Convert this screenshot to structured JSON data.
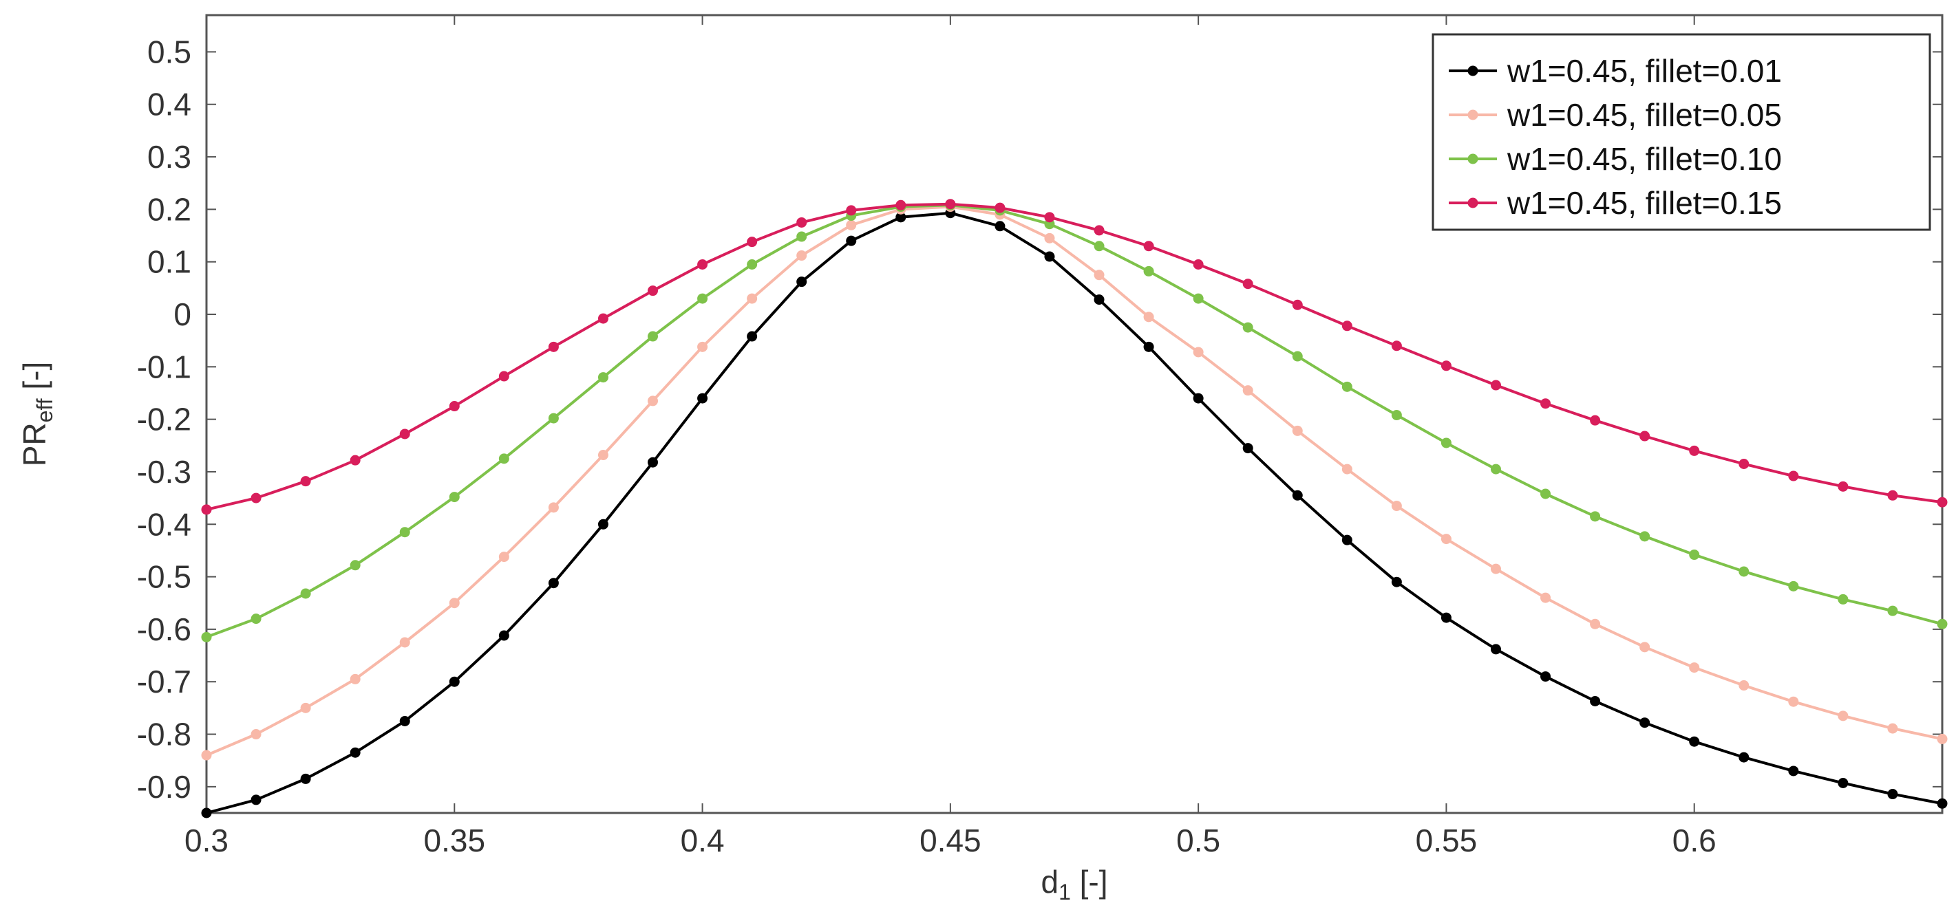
{
  "chart_data": {
    "type": "line",
    "title": "",
    "xlabel": {
      "main": "d",
      "sub": "1",
      "suffix": " [-]"
    },
    "ylabel": {
      "main": "PR",
      "sub": "eff",
      "suffix": " [-]"
    },
    "xlim": [
      0.3,
      0.65
    ],
    "ylim": [
      -0.95,
      0.57
    ],
    "grid": false,
    "legend_position": "top-right",
    "x_ticks": [
      {
        "value": 0.3,
        "label": "0.3"
      },
      {
        "value": 0.35,
        "label": "0.35"
      },
      {
        "value": 0.4,
        "label": "0.4"
      },
      {
        "value": 0.45,
        "label": "0.45"
      },
      {
        "value": 0.5,
        "label": "0.5"
      },
      {
        "value": 0.55,
        "label": "0.55"
      },
      {
        "value": 0.6,
        "label": "0.6"
      }
    ],
    "y_ticks": [
      {
        "value": 0.5,
        "label": "0.5"
      },
      {
        "value": 0.4,
        "label": "0.4"
      },
      {
        "value": 0.3,
        "label": "0.3"
      },
      {
        "value": 0.2,
        "label": "0.2"
      },
      {
        "value": 0.1,
        "label": "0.1"
      },
      {
        "value": 0.0,
        "label": "0"
      },
      {
        "value": -0.1,
        "label": "-0.1"
      },
      {
        "value": -0.2,
        "label": "-0.2"
      },
      {
        "value": -0.3,
        "label": "-0.3"
      },
      {
        "value": -0.4,
        "label": "-0.4"
      },
      {
        "value": -0.5,
        "label": "-0.5"
      },
      {
        "value": -0.6,
        "label": "-0.6"
      },
      {
        "value": -0.7,
        "label": "-0.7"
      },
      {
        "value": -0.8,
        "label": "-0.8"
      },
      {
        "value": -0.9,
        "label": "-0.9"
      }
    ],
    "x": [
      0.3,
      0.31,
      0.32,
      0.33,
      0.34,
      0.35,
      0.36,
      0.37,
      0.38,
      0.39,
      0.4,
      0.41,
      0.42,
      0.43,
      0.44,
      0.45,
      0.46,
      0.47,
      0.48,
      0.49,
      0.5,
      0.51,
      0.52,
      0.53,
      0.54,
      0.55,
      0.56,
      0.57,
      0.58,
      0.59,
      0.6,
      0.61,
      0.62,
      0.63,
      0.64,
      0.65
    ],
    "series": [
      {
        "name": "w1=0.45, fillet=0.01",
        "color": "#000000",
        "values": [
          -0.95,
          -0.925,
          -0.885,
          -0.835,
          -0.775,
          -0.7,
          -0.612,
          -0.512,
          -0.4,
          -0.282,
          -0.16,
          -0.042,
          0.062,
          0.14,
          0.185,
          0.193,
          0.168,
          0.11,
          0.028,
          -0.062,
          -0.16,
          -0.255,
          -0.345,
          -0.43,
          -0.51,
          -0.578,
          -0.638,
          -0.69,
          -0.737,
          -0.778,
          -0.814,
          -0.844,
          -0.87,
          -0.893,
          -0.914,
          -0.932
        ]
      },
      {
        "name": "w1=0.45, fillet=0.05",
        "color": "#f8b8a8",
        "values": [
          -0.84,
          -0.8,
          -0.75,
          -0.695,
          -0.625,
          -0.55,
          -0.462,
          -0.368,
          -0.268,
          -0.165,
          -0.062,
          0.03,
          0.112,
          0.17,
          0.2,
          0.205,
          0.19,
          0.145,
          0.075,
          -0.005,
          -0.072,
          -0.145,
          -0.222,
          -0.295,
          -0.365,
          -0.428,
          -0.485,
          -0.54,
          -0.59,
          -0.634,
          -0.673,
          -0.707,
          -0.738,
          -0.765,
          -0.789,
          -0.809
        ]
      },
      {
        "name": "w1=0.45, fillet=0.10",
        "color": "#7ec24a",
        "values": [
          -0.615,
          -0.58,
          -0.532,
          -0.478,
          -0.415,
          -0.348,
          -0.275,
          -0.198,
          -0.12,
          -0.042,
          0.03,
          0.095,
          0.148,
          0.188,
          0.205,
          0.208,
          0.198,
          0.172,
          0.13,
          0.082,
          0.03,
          -0.025,
          -0.08,
          -0.138,
          -0.192,
          -0.245,
          -0.295,
          -0.342,
          -0.385,
          -0.423,
          -0.458,
          -0.49,
          -0.518,
          -0.543,
          -0.565,
          -0.59
        ]
      },
      {
        "name": "w1=0.45, fillet=0.15",
        "color": "#d81e5b",
        "values": [
          -0.372,
          -0.35,
          -0.318,
          -0.278,
          -0.228,
          -0.175,
          -0.118,
          -0.062,
          -0.008,
          0.045,
          0.095,
          0.138,
          0.175,
          0.198,
          0.208,
          0.21,
          0.203,
          0.185,
          0.16,
          0.13,
          0.095,
          0.058,
          0.018,
          -0.022,
          -0.06,
          -0.098,
          -0.135,
          -0.17,
          -0.202,
          -0.232,
          -0.26,
          -0.285,
          -0.308,
          -0.328,
          -0.345,
          -0.358
        ]
      }
    ]
  }
}
